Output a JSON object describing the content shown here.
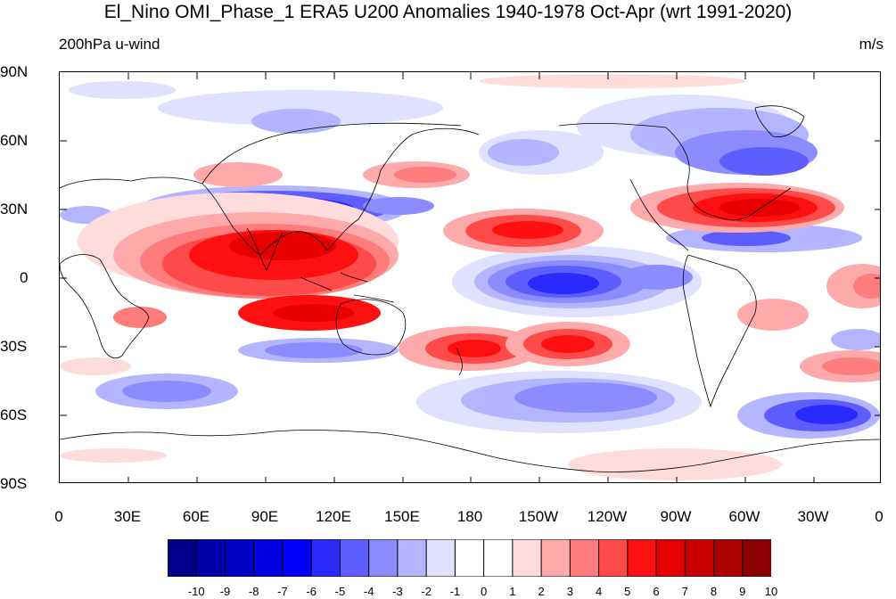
{
  "title": "El_Nino OMI_Phase_1 ERA5 U200 Anomalies 1940-1978 Oct-Apr (wrt 1991-2020)",
  "left_subtitle": "200hPa u-wind",
  "right_subtitle": "m/s",
  "lat_labels": [
    "90N",
    "60N",
    "30N",
    "0",
    "30S",
    "60S",
    "90S"
  ],
  "lon_labels": [
    "0",
    "30E",
    "60E",
    "90E",
    "120E",
    "150E",
    "180",
    "150W",
    "120W",
    "90W",
    "60W",
    "30W",
    "0"
  ],
  "colorbar": {
    "labels": [
      "-10",
      "-9",
      "-8",
      "-7",
      "-6",
      "-5",
      "-4",
      "-3",
      "-2",
      "-1",
      "0",
      "1",
      "2",
      "3",
      "4",
      "5",
      "6",
      "7",
      "8",
      "9",
      "10"
    ],
    "colors": [
      "#00008b",
      "#0000a8",
      "#0000c4",
      "#0000e0",
      "#0000ff",
      "#2a2aff",
      "#5e5eff",
      "#8c8cff",
      "#b4b4ff",
      "#e0e0ff",
      "#ffffff",
      "#ffffff",
      "#ffdcdc",
      "#ffaaaa",
      "#ff7c7c",
      "#ff4a4a",
      "#ff1010",
      "#e60000",
      "#c80000",
      "#aa0000",
      "#8b0000"
    ]
  }
}
